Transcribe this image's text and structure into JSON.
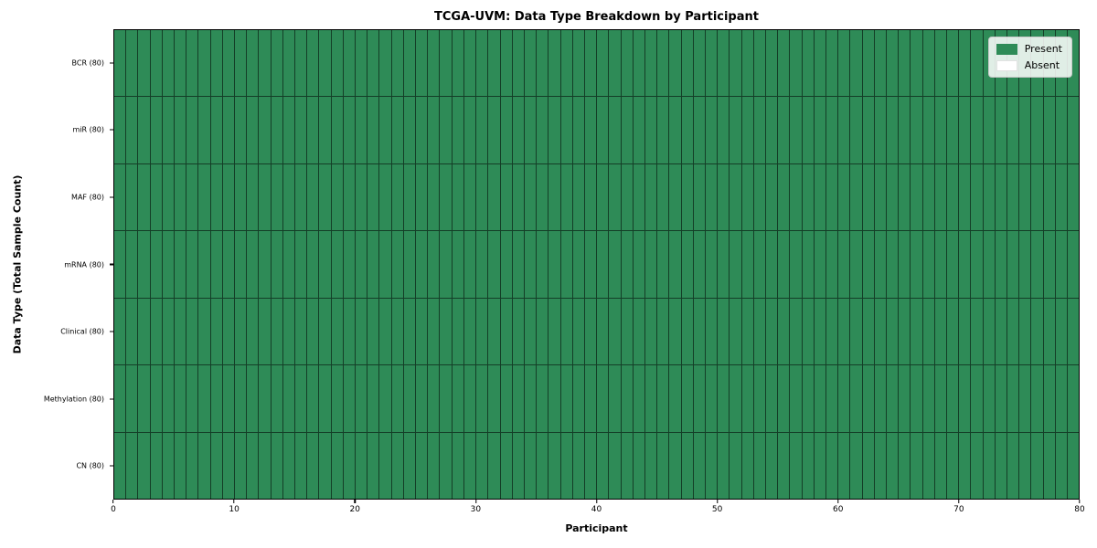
{
  "chart_data": {
    "type": "heatmap",
    "title": "TCGA-UVM: Data Type Breakdown by Participant",
    "xlabel": "Participant",
    "ylabel": "Data Type (Total Sample Count)",
    "xlim": [
      0,
      80
    ],
    "x_ticks": [
      0,
      10,
      20,
      30,
      40,
      50,
      60,
      70,
      80
    ],
    "participants": 80,
    "rows": [
      {
        "label": "BCR (80)",
        "present_count": 80,
        "absent_count": 0
      },
      {
        "label": "miR (80)",
        "present_count": 80,
        "absent_count": 0
      },
      {
        "label": "MAF (80)",
        "present_count": 80,
        "absent_count": 0
      },
      {
        "label": "mRNA (80)",
        "present_count": 80,
        "absent_count": 0
      },
      {
        "label": "Clinical (80)",
        "present_count": 80,
        "absent_count": 0
      },
      {
        "label": "Methylation (80)",
        "present_count": 80,
        "absent_count": 0
      },
      {
        "label": "CN (80)",
        "present_count": 80,
        "absent_count": 0
      }
    ],
    "legend": {
      "position": "upper right",
      "items": [
        {
          "label": "Present",
          "color": "#2e8b57"
        },
        {
          "label": "Absent",
          "color": "#ffffff"
        }
      ]
    },
    "colors": {
      "present": "#2e8b57",
      "absent": "#ffffff",
      "cell_edge": "rgba(0,0,0,0.55)",
      "spine": "#000000"
    },
    "grid": "cell-borders-on",
    "legend_visible": true
  }
}
